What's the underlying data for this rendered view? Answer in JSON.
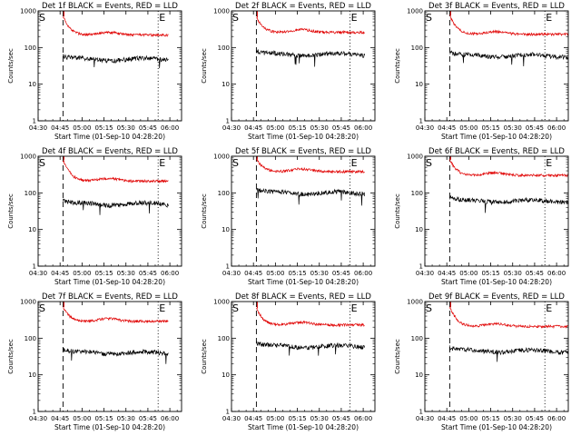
{
  "chart_data": {
    "type": "line",
    "layout": "3x3 grid",
    "yscale": "log",
    "ylim": [
      1,
      1000
    ],
    "yticks": [
      "1",
      "10",
      "100",
      "1000"
    ],
    "ylabel": "Counts/sec",
    "xlabel": "Start Time (01-Sep-10 04:28:20)",
    "xlim": [
      "04:30",
      "06:08"
    ],
    "xticks": [
      "04:30",
      "04:45",
      "05:00",
      "05:15",
      "05:30",
      "05:45",
      "06:00"
    ],
    "markers": {
      "start": {
        "label": "S",
        "time": "04:47",
        "style": "dashed"
      },
      "end": {
        "label": "E",
        "time_default": "05:52",
        "style": "dotted"
      }
    },
    "legend_text": "BLACK = Events, RED = LLD",
    "series_colors": {
      "events": "#000000",
      "lld": "#e00000"
    },
    "panels": [
      {
        "title": "Det 1f BLACK = Events, RED = LLD",
        "lld_peak": 700,
        "lld_level": 220,
        "events_level": 48,
        "end_time": "05:52",
        "trace_end": "05:59"
      },
      {
        "title": "Det 2f BLACK = Events, RED = LLD",
        "lld_peak": 650,
        "lld_level": 260,
        "events_level": 65,
        "end_time": "05:51",
        "trace_end": "06:01"
      },
      {
        "title": "Det 3f BLACK = Events, RED = LLD",
        "lld_peak": 750,
        "lld_level": 230,
        "events_level": 60,
        "end_time": "05:52",
        "trace_end": "06:08"
      },
      {
        "title": "Det 4f BLACK = Events, RED = LLD",
        "lld_peak": 800,
        "lld_level": 210,
        "events_level": 50,
        "end_time": "05:52",
        "trace_end": "05:59"
      },
      {
        "title": "Det 5f BLACK = Events, RED = LLD",
        "lld_peak": 850,
        "lld_level": 380,
        "events_level": 100,
        "end_time": "05:51",
        "trace_end": "06:01"
      },
      {
        "title": "Det 6f BLACK = Events, RED = LLD",
        "lld_peak": 800,
        "lld_level": 300,
        "events_level": 60,
        "end_time": "05:52",
        "trace_end": "06:08"
      },
      {
        "title": "Det 7f BLACK = Events, RED = LLD",
        "lld_peak": 700,
        "lld_level": 290,
        "events_level": 40,
        "end_time": "05:52",
        "trace_end": "05:59"
      },
      {
        "title": "Det 8f BLACK = Events, RED = LLD",
        "lld_peak": 650,
        "lld_level": 230,
        "events_level": 60,
        "end_time": "05:51",
        "trace_end": "06:01"
      },
      {
        "title": "Det 9f BLACK = Events, RED = LLD",
        "lld_peak": 700,
        "lld_level": 210,
        "events_level": 45,
        "end_time": "05:52",
        "trace_end": "06:08"
      }
    ]
  }
}
